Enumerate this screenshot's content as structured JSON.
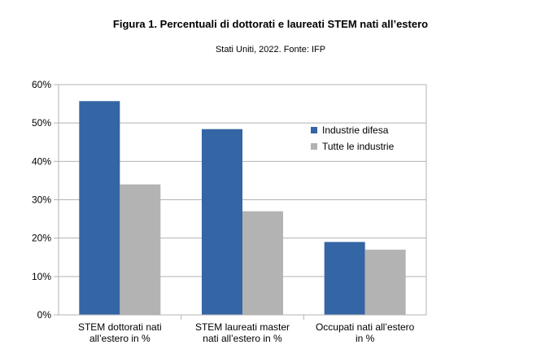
{
  "chart_data": {
    "type": "bar",
    "title": "Figura 1. Percentuali di dottorati e laureati STEM nati all’estero",
    "subtitle": "Stati Uniti, 2022. Fonte: IFP",
    "categories": [
      [
        "STEM dottorati nati",
        "all’estero in %"
      ],
      [
        "STEM laureati master",
        "nati all’estero in %"
      ],
      [
        "Occupati nati all’estero",
        "in %"
      ]
    ],
    "series": [
      {
        "name": "Industrie difesa",
        "values": [
          55.7,
          48.4,
          19.0
        ],
        "color": "#3465a4"
      },
      {
        "name": "Tutte le industrie",
        "values": [
          34.0,
          27.0,
          17.0
        ],
        "color": "#b3b3b3"
      }
    ],
    "ylim": [
      0,
      60
    ],
    "yticks": [
      "0%",
      "10%",
      "20%",
      "30%",
      "40%",
      "50%",
      "60%"
    ],
    "grid": true,
    "legend_position": "top-right"
  }
}
